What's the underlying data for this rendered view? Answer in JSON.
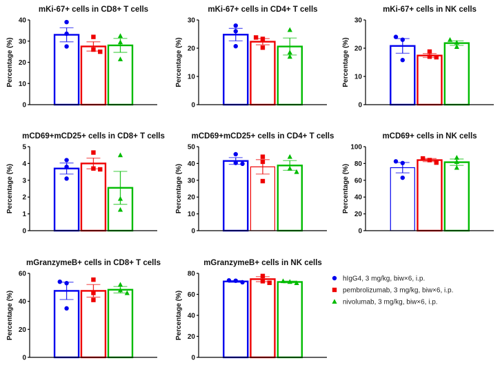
{
  "colors": {
    "hIgG4": "#0000ee",
    "pembrolizumab": "#ee0000",
    "nivolumab": "#00bb00",
    "axis": "#000000"
  },
  "legend": {
    "items": [
      {
        "label": "hIgG4, 3 mg/kg, biw×6, i.p.",
        "marker": "circle",
        "color": "#0000ee"
      },
      {
        "label": "pembrolizumab, 3 mg/kg, biw×6, i.p.",
        "marker": "square",
        "color": "#ee0000"
      },
      {
        "label": "nivolumab, 3 mg/kg, biw×6, i.p.",
        "marker": "triangle",
        "color": "#00bb00"
      }
    ],
    "placement": "bottom-right"
  },
  "chart_data": [
    {
      "type": "bar",
      "title": "mKi-67+ cells in CD8+ T cells",
      "ylabel": "Percentage (%)",
      "xlabel": "",
      "ylim": [
        0,
        40
      ],
      "yticks": [
        "0",
        "10",
        "20",
        "30",
        "40"
      ],
      "categories": [
        "hIgG4",
        "pembrolizumab",
        "nivolumab"
      ],
      "means": [
        33,
        27.5,
        28
      ],
      "sem": [
        3.3,
        2.2,
        3.3
      ],
      "points": [
        [
          39,
          33.5,
          27.5
        ],
        [
          32,
          25,
          26
        ],
        [
          32.5,
          29.5,
          21.5
        ]
      ]
    },
    {
      "type": "bar",
      "title": "mKi-67+ cells in CD4+ T cells",
      "ylabel": "Percentage (%)",
      "xlabel": "",
      "ylim": [
        0,
        30
      ],
      "yticks": [
        "0",
        "10",
        "20",
        "30"
      ],
      "categories": [
        "hIgG4",
        "pembrolizumab",
        "nivolumab"
      ],
      "means": [
        24.8,
        22.3,
        20.6
      ],
      "sem": [
        2.2,
        1.1,
        3.0
      ],
      "points": [
        [
          28,
          26,
          20.7
        ],
        [
          23.8,
          23.3,
          20.2
        ],
        [
          26.5,
          18.5,
          17
        ]
      ]
    },
    {
      "type": "bar",
      "title": "mKi-67+ cells in NK cells",
      "ylabel": "Percentage (%)",
      "xlabel": "",
      "ylim": [
        0,
        30
      ],
      "yticks": [
        "0",
        "10",
        "20",
        "30"
      ],
      "categories": [
        "hIgG4",
        "pembrolizumab",
        "nivolumab"
      ],
      "means": [
        20.8,
        17.4,
        21.8
      ],
      "sem": [
        2.6,
        0.7,
        0.8
      ],
      "points": [
        [
          24,
          23,
          15.8
        ],
        [
          18.8,
          16.8,
          17
        ],
        [
          23,
          22,
          20.5
        ]
      ]
    },
    {
      "type": "bar",
      "title": "mCD69+mCD25+ cells in CD8+ T cells",
      "ylabel": "Percentage (%)",
      "xlabel": "",
      "ylim": [
        0,
        5
      ],
      "yticks": [
        "0",
        "1",
        "2",
        "3",
        "4",
        "5"
      ],
      "categories": [
        "hIgG4",
        "pembrolizumab",
        "nivolumab"
      ],
      "means": [
        3.7,
        4.0,
        2.55
      ],
      "sem": [
        0.33,
        0.32,
        0.98
      ],
      "points": [
        [
          4.2,
          3.8,
          3.1
        ],
        [
          4.65,
          3.65,
          3.7
        ],
        [
          4.5,
          1.9,
          1.25
        ]
      ]
    },
    {
      "type": "bar",
      "title": "mCD69+mCD25+ cells in CD4+ T cells",
      "ylabel": "Percentage (%)",
      "xlabel": "",
      "ylim": [
        0,
        50
      ],
      "yticks": [
        "0",
        "10",
        "20",
        "30",
        "40",
        "50"
      ],
      "categories": [
        "hIgG4",
        "pembrolizumab",
        "nivolumab"
      ],
      "means": [
        41.5,
        38,
        38.8
      ],
      "sem": [
        2.0,
        4.3,
        2.9
      ],
      "points": [
        [
          45.5,
          39.8,
          40.3
        ],
        [
          44,
          41,
          29.5
        ],
        [
          44,
          37,
          35
        ]
      ]
    },
    {
      "type": "bar",
      "title": "mCD69+ cells in NK cells",
      "ylabel": "Percentage (%)",
      "xlabel": "",
      "ylim": [
        0,
        100
      ],
      "yticks": [
        "0",
        "20",
        "40",
        "60",
        "80",
        "100"
      ],
      "categories": [
        "hIgG4",
        "pembrolizumab",
        "nivolumab"
      ],
      "means": [
        75,
        84,
        81.5
      ],
      "sem": [
        6.2,
        1.8,
        3.8
      ],
      "points": [
        [
          80.5,
          82.5,
          63
        ],
        [
          86,
          81,
          84
        ],
        [
          87,
          82,
          75
        ]
      ]
    },
    {
      "type": "bar",
      "title": "mGranzymeB+ cells in CD8+ T cells",
      "ylabel": "Percentage (%)",
      "xlabel": "",
      "ylim": [
        0,
        60
      ],
      "yticks": [
        "0",
        "20",
        "40",
        "60"
      ],
      "categories": [
        "hIgG4",
        "pembrolizumab",
        "nivolumab"
      ],
      "means": [
        47.5,
        47.5,
        48.3
      ],
      "sem": [
        6.2,
        4.5,
        2.3
      ],
      "points": [
        [
          54,
          53,
          35
        ],
        [
          55.5,
          46,
          41
        ],
        [
          52,
          46,
          48
        ]
      ]
    },
    {
      "type": "bar",
      "title": "mGranzymeB+ cells in NK cells",
      "ylabel": "Percentage (%)",
      "xlabel": "",
      "ylim": [
        0,
        80
      ],
      "yticks": [
        "0",
        "20",
        "40",
        "60",
        "80"
      ],
      "categories": [
        "hIgG4",
        "pembrolizumab",
        "nivolumab"
      ],
      "means": [
        72.3,
        74.5,
        71.8
      ],
      "sem": [
        0.8,
        2.4,
        0.8
      ],
      "points": [
        [
          71.5,
          73.3,
          73
        ],
        [
          77.5,
          72.5,
          71
        ],
        [
          70.8,
          72.7,
          72
        ]
      ]
    }
  ]
}
